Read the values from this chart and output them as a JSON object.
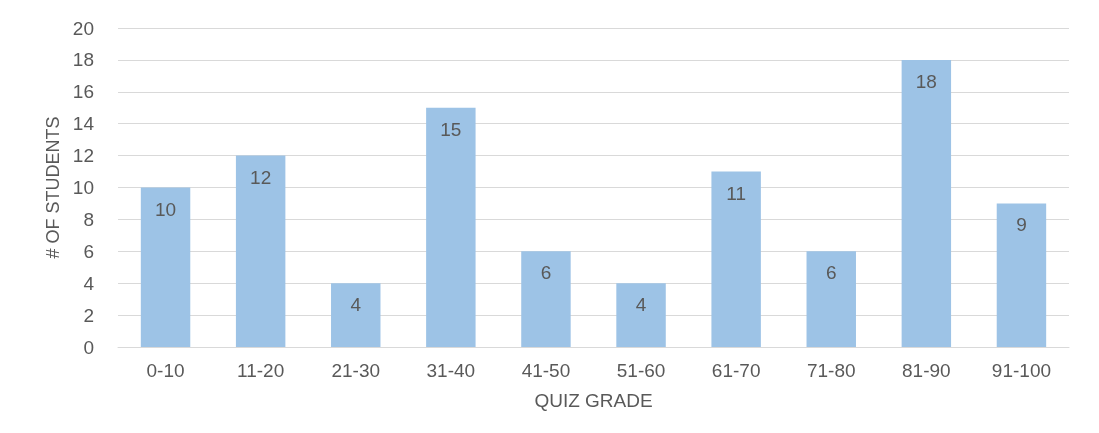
{
  "chart_data": {
    "type": "bar",
    "xlabel": "QUIZ GRADE",
    "ylabel": "# OF STUDENTS",
    "categories": [
      "0-10",
      "11-20",
      "21-30",
      "31-40",
      "41-50",
      "51-60",
      "61-70",
      "71-80",
      "81-90",
      "91-100"
    ],
    "values": [
      10,
      12,
      4,
      15,
      6,
      4,
      11,
      6,
      18,
      9
    ],
    "color": "#9dc3e6",
    "ylim": [
      0,
      20
    ],
    "yticks": [
      0,
      2,
      4,
      6,
      8,
      10,
      12,
      14,
      16,
      18,
      20
    ],
    "grid": "y",
    "data_labels": true
  }
}
